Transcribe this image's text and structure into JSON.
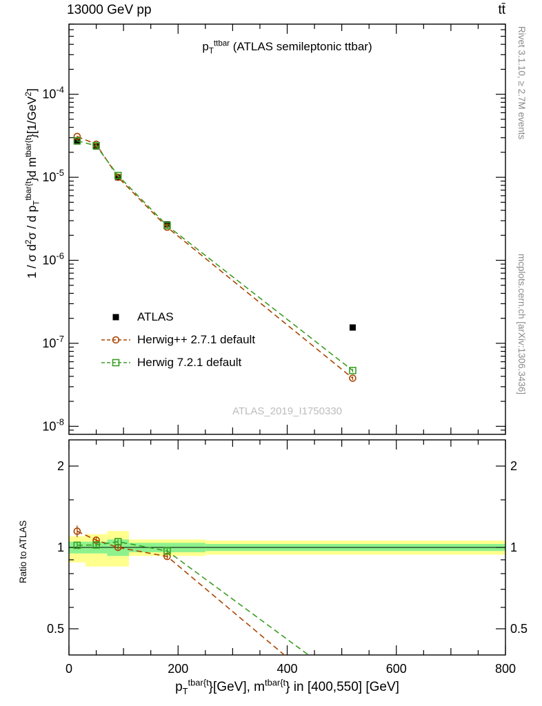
{
  "header": {
    "left": "13000 GeV pp",
    "right": "tt̄"
  },
  "side_notes": {
    "generator_info": "Rivet 3.1.10, ≥ 2.7M events",
    "site_ref": "mcplots.cern.ch [arXiv:1306.3436]"
  },
  "watermark": "ATLAS_2019_I1750330",
  "labels": {
    "title_rich": [
      {
        "t": "text",
        "s": "p"
      },
      {
        "t": "sub",
        "s": "T"
      },
      {
        "t": "sup",
        "s": "ttbar"
      },
      {
        "t": "text",
        "s": " (ATLAS semileptonic ttbar)"
      }
    ],
    "ylabel_rich": [
      {
        "t": "text",
        "s": "1 / σ d"
      },
      {
        "t": "sup",
        "s": "2"
      },
      {
        "t": "text",
        "s": "σ / d p"
      },
      {
        "t": "sub",
        "s": "T"
      },
      {
        "t": "sup",
        "s": "tbar{t"
      },
      {
        "t": "text",
        "s": "}d m"
      },
      {
        "t": "sup",
        "s": "tbar{t"
      },
      {
        "t": "text",
        "s": "}[1/GeV"
      },
      {
        "t": "sup",
        "s": "2"
      },
      {
        "t": "text",
        "s": "]"
      }
    ],
    "xlabel_rich": [
      {
        "t": "text",
        "s": "p"
      },
      {
        "t": "sub",
        "s": "T"
      },
      {
        "t": "sup",
        "s": "tbar{t"
      },
      {
        "t": "text",
        "s": "}[GeV], m"
      },
      {
        "t": "sup",
        "s": "tbar{t"
      },
      {
        "t": "text",
        "s": "} in [400,550] [GeV]"
      }
    ],
    "ratio_ylabel": "Ratio to ATLAS"
  },
  "chart_data": {
    "type": "line",
    "title": "pT^ttbar (ATLAS semileptonic ttbar)",
    "subtitle": "13000 GeV pp, ttbar",
    "xlabel": "pT^tbar{t} [GeV], m^tbar{t} in [400,550] [GeV]",
    "ylabel": "1/σ d²σ / d pT^tbar{t} d m^tbar{t} [1/GeV²]",
    "legend_position": "middle-left",
    "grid": false,
    "x_range": [
      0,
      800
    ],
    "x_ticks": [
      0,
      200,
      400,
      600,
      800
    ],
    "x_minor_step": 50,
    "y_scale": "log",
    "y_range": [
      8e-09,
      0.0007
    ],
    "y_decade_labels": [
      -4,
      -5,
      -6,
      -7,
      -8
    ],
    "x": [
      15,
      50,
      90,
      180,
      520
    ],
    "series": [
      {
        "name": "ATLAS",
        "marker": "filled-square",
        "color": "#000000",
        "line": "none",
        "y": [
          2.7e-05,
          2.35e-05,
          1e-05,
          2.7e-06,
          1.55e-07
        ],
        "yerr_rel": [
          0.06,
          0.07,
          0.05,
          0.05,
          0.08
        ]
      },
      {
        "name": "Herwig++ 2.7.1 default",
        "marker": "open-circle",
        "color": "#aa4400",
        "line": "dashed",
        "y": [
          3.1e-05,
          2.5e-05,
          1e-05,
          2.5e-06,
          3.8e-08
        ],
        "yerr_rel": [
          0.02,
          0.02,
          0.02,
          0.02,
          0.05
        ],
        "ratio_yerr_rel": [
          0.05,
          0.03,
          0.02,
          0.02,
          0.06
        ]
      },
      {
        "name": "Herwig 7.2.1 default",
        "marker": "open-square",
        "color": "#3a9d23",
        "line": "dashed",
        "y": [
          2.75e-05,
          2.4e-05,
          1.05e-05,
          2.62e-06,
          4.7e-08
        ],
        "yerr_rel": [
          0.02,
          0.02,
          0.02,
          0.02,
          0.05
        ],
        "ratio_yerr_rel": [
          0.03,
          0.02,
          0.02,
          0.02,
          0.06
        ]
      }
    ],
    "ratio_panel": {
      "ylabel": "Ratio to ATLAS",
      "y_scale": "log",
      "y_range": [
        0.4,
        2.5
      ],
      "y_ticks": [
        0.5,
        1,
        2
      ],
      "y_minor_ticks": [
        0.6,
        0.7,
        0.8,
        0.9,
        1.5
      ],
      "reference_series": "ATLAS",
      "band_colors": {
        "outer": "#ffff8e",
        "inner": "#8df28d"
      },
      "bands": [
        {
          "x_range": [
            0,
            30
          ],
          "outer": [
            0.88,
            1.1
          ],
          "inner": [
            0.95,
            1.05
          ]
        },
        {
          "x_range": [
            30,
            70
          ],
          "outer": [
            0.85,
            1.12
          ],
          "inner": [
            0.95,
            1.05
          ]
        },
        {
          "x_range": [
            70,
            110
          ],
          "outer": [
            0.85,
            1.15
          ],
          "inner": [
            0.93,
            1.07
          ]
        },
        {
          "x_range": [
            110,
            250
          ],
          "outer": [
            0.93,
            1.07
          ],
          "inner": [
            0.96,
            1.04
          ]
        },
        {
          "x_range": [
            250,
            800
          ],
          "outer": [
            0.94,
            1.06
          ],
          "inner": [
            0.97,
            1.03
          ]
        }
      ]
    }
  }
}
